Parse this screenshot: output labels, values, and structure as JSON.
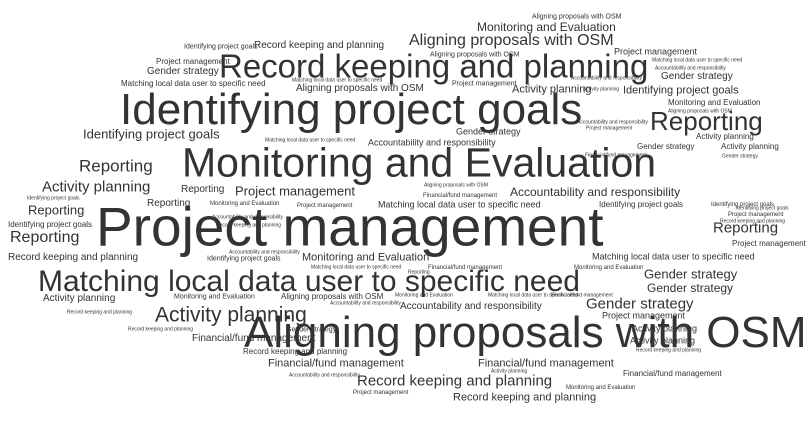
{
  "text_color": "#333333",
  "background": "#ffffff",
  "words": [
    {
      "text": "Aligning proposals with OSM"
    },
    {
      "text": "Monitoring and Evaluation"
    },
    {
      "text": "Identifying project goals"
    },
    {
      "text": "Record keeping and planning"
    },
    {
      "text": "Project management"
    },
    {
      "text": "Aligning proposals with OSM"
    },
    {
      "text": "Matching local data user to specific need"
    },
    {
      "text": "Aligning proposals with OSM"
    },
    {
      "text": "Record keeping and planning"
    },
    {
      "text": "Project management"
    },
    {
      "text": "Matching local data user to specific need"
    },
    {
      "text": "Gender strategy"
    },
    {
      "text": "Accountability and responsibility"
    },
    {
      "text": "Gender strategy"
    },
    {
      "text": "Matching local data user to specific need"
    },
    {
      "text": "Aligning proposals with OSM"
    },
    {
      "text": "Project management"
    },
    {
      "text": "Activity planning"
    },
    {
      "text": "Identifying project goals"
    },
    {
      "text": "Identifying project goals"
    },
    {
      "text": "Monitoring and Evaluation"
    },
    {
      "text": "Reporting"
    },
    {
      "text": "Aligning proposals with OSM"
    },
    {
      "text": "Identifying project goals"
    },
    {
      "text": "Accountability and responsibility"
    },
    {
      "text": "Gender strategy"
    },
    {
      "text": "Activity planning"
    },
    {
      "text": "Project management"
    },
    {
      "text": "Matching local data user to specific need"
    },
    {
      "text": "Accountability and responsibility"
    },
    {
      "text": "Gender strategy"
    },
    {
      "text": "Activity planning"
    },
    {
      "text": "Reporting"
    },
    {
      "text": "Financial/fund management"
    },
    {
      "text": "Monitoring and Evaluation"
    },
    {
      "text": "Gender strategy"
    },
    {
      "text": "Activity planning"
    },
    {
      "text": "Aligning proposals with OSM"
    },
    {
      "text": "Financial/fund management"
    },
    {
      "text": "Reporting"
    },
    {
      "text": "Project management"
    },
    {
      "text": "Accountability and responsibility"
    },
    {
      "text": "Identifying project goals"
    },
    {
      "text": "Reporting"
    },
    {
      "text": "Monitoring and Evaluation"
    },
    {
      "text": "Identifying project goals"
    },
    {
      "text": "Project management"
    },
    {
      "text": "Matching local data user to specific need"
    },
    {
      "text": "Identifying project goals"
    },
    {
      "text": "Record keeping and planning"
    },
    {
      "text": "Project management"
    },
    {
      "text": "Accountability and responsibility"
    },
    {
      "text": "Project management"
    },
    {
      "text": "Reporting"
    },
    {
      "text": "Record keeping and planning"
    },
    {
      "text": "Identifying project goals"
    },
    {
      "text": "Reporting"
    },
    {
      "text": "Reporting"
    },
    {
      "text": "Accountability and responsibility"
    },
    {
      "text": "Identifying project goals"
    },
    {
      "text": "Monitoring and Evaluation"
    },
    {
      "text": "Matching local data user to specific need"
    },
    {
      "text": "Record keeping and planning"
    },
    {
      "text": "Matching local data user to specific need"
    },
    {
      "text": "Financial/fund management"
    },
    {
      "text": "Monitoring and Evaluation"
    },
    {
      "text": "Gender strategy"
    },
    {
      "text": "Gender strategy"
    },
    {
      "text": "Matching local data user to specific need"
    },
    {
      "text": "Activity planning"
    },
    {
      "text": "Monitoring and Evaluation"
    },
    {
      "text": "Aligning proposals with OSM"
    },
    {
      "text": "Monitoring and Evaluation"
    },
    {
      "text": "Matching local data user to specific need"
    },
    {
      "text": "Financial/fund management"
    },
    {
      "text": "Gender strategy"
    },
    {
      "text": "Record keeping and planning"
    },
    {
      "text": "Activity planning"
    },
    {
      "text": "Accountability and responsibility"
    },
    {
      "text": "Accountability and responsibility"
    },
    {
      "text": "Project management"
    },
    {
      "text": "Gender strategy"
    },
    {
      "text": "Activity planning"
    },
    {
      "text": "Financial/fund management"
    },
    {
      "text": "Activity planning"
    },
    {
      "text": "Record keeping and planning"
    },
    {
      "text": "Record keeping and planning"
    },
    {
      "text": "Record keeping and planning"
    },
    {
      "text": "Aligning proposals with OSM"
    },
    {
      "text": "Financial/fund management"
    },
    {
      "text": "Financial/fund management"
    },
    {
      "text": "Activity planning"
    },
    {
      "text": "Financial/fund management"
    },
    {
      "text": "Record keeping and planning"
    },
    {
      "text": "Accountability and responsibility"
    },
    {
      "text": "Project management"
    },
    {
      "text": "Record keeping and planning"
    },
    {
      "text": "Monitoring and Evaluation"
    },
    {
      "text": "Reporting"
    },
    {
      "text": "Project management"
    },
    {
      "text": "Identifying project goals"
    },
    {
      "text": "Activity planning"
    },
    {
      "text": "Accountability and responsibility"
    }
  ]
}
